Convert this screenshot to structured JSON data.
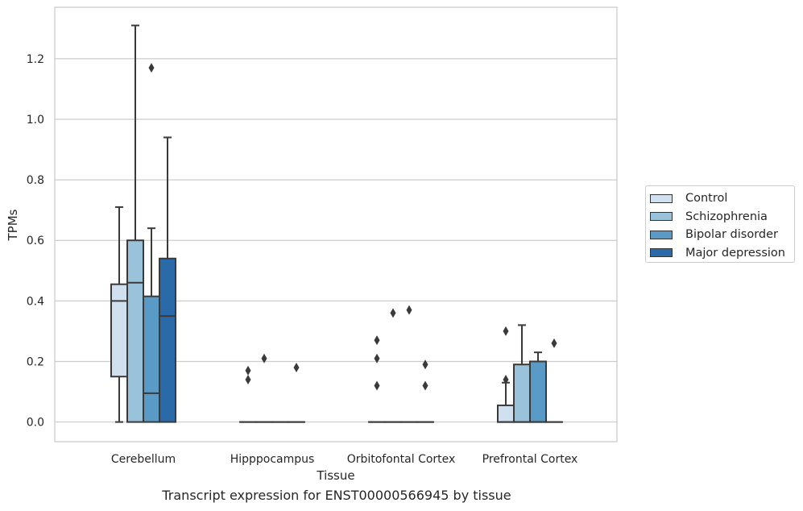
{
  "chart_data": {
    "type": "boxplot",
    "title": "",
    "xlabel": "Tissue",
    "ylabel": "TPMs",
    "caption": "Transcript expression for ENST00000566945 by tissue",
    "ylim": [
      -0.065,
      1.37
    ],
    "yticks": [
      "0.0",
      "0.2",
      "0.4",
      "0.6",
      "0.8",
      "1.0",
      "1.2"
    ],
    "grid": true,
    "legend_position": "right",
    "categories": [
      "Cerebellum",
      "Hipppocampus",
      "Orbitofontal Cortex",
      "Prefrontal Cortex"
    ],
    "series": [
      {
        "name": "Control",
        "color": "#d0e0ee",
        "boxes": [
          {
            "whislo": 0.0,
            "q1": 0.15,
            "med": 0.4,
            "q3": 0.455,
            "whishi": 0.71,
            "fliers": []
          },
          {
            "whislo": 0.0,
            "q1": 0.0,
            "med": 0.0,
            "q3": 0.0,
            "whishi": 0.0,
            "fliers": [
              0.17,
              0.14
            ]
          },
          {
            "whislo": 0.0,
            "q1": 0.0,
            "med": 0.0,
            "q3": 0.0,
            "whishi": 0.0,
            "fliers": [
              0.27,
              0.21,
              0.12
            ]
          },
          {
            "whislo": 0.0,
            "q1": 0.0,
            "med": 0.0,
            "q3": 0.055,
            "whishi": 0.13,
            "fliers": [
              0.3,
              0.14
            ]
          }
        ]
      },
      {
        "name": "Schizophrenia",
        "color": "#9ac2db",
        "boxes": [
          {
            "whislo": 0.0,
            "q1": 0.0,
            "med": 0.46,
            "q3": 0.6,
            "whishi": 1.31,
            "fliers": []
          },
          {
            "whislo": 0.0,
            "q1": 0.0,
            "med": 0.0,
            "q3": 0.0,
            "whishi": 0.0,
            "fliers": [
              0.21
            ]
          },
          {
            "whislo": 0.0,
            "q1": 0.0,
            "med": 0.0,
            "q3": 0.0,
            "whishi": 0.0,
            "fliers": [
              0.36
            ]
          },
          {
            "whislo": 0.0,
            "q1": 0.0,
            "med": 0.0,
            "q3": 0.19,
            "whishi": 0.32,
            "fliers": []
          }
        ]
      },
      {
        "name": "Bipolar disorder",
        "color": "#5a9ac6",
        "boxes": [
          {
            "whislo": 0.0,
            "q1": 0.0,
            "med": 0.095,
            "q3": 0.415,
            "whishi": 0.64,
            "fliers": [
              1.17
            ]
          },
          {
            "whislo": 0.0,
            "q1": 0.0,
            "med": 0.0,
            "q3": 0.0,
            "whishi": 0.0,
            "fliers": []
          },
          {
            "whislo": 0.0,
            "q1": 0.0,
            "med": 0.0,
            "q3": 0.0,
            "whishi": 0.0,
            "fliers": [
              0.37
            ]
          },
          {
            "whislo": 0.0,
            "q1": 0.0,
            "med": 0.0,
            "q3": 0.2,
            "whishi": 0.23,
            "fliers": []
          }
        ]
      },
      {
        "name": "Major depression",
        "color": "#2b6aa8",
        "boxes": [
          {
            "whislo": 0.0,
            "q1": 0.0,
            "med": 0.35,
            "q3": 0.54,
            "whishi": 0.94,
            "fliers": []
          },
          {
            "whislo": 0.0,
            "q1": 0.0,
            "med": 0.0,
            "q3": 0.0,
            "whishi": 0.0,
            "fliers": [
              0.18
            ]
          },
          {
            "whislo": 0.0,
            "q1": 0.0,
            "med": 0.0,
            "q3": 0.0,
            "whishi": 0.0,
            "fliers": [
              0.19,
              0.12
            ]
          },
          {
            "whislo": 0.0,
            "q1": 0.0,
            "med": 0.0,
            "q3": 0.0,
            "whishi": 0.0,
            "fliers": [
              0.26
            ]
          }
        ]
      }
    ]
  }
}
